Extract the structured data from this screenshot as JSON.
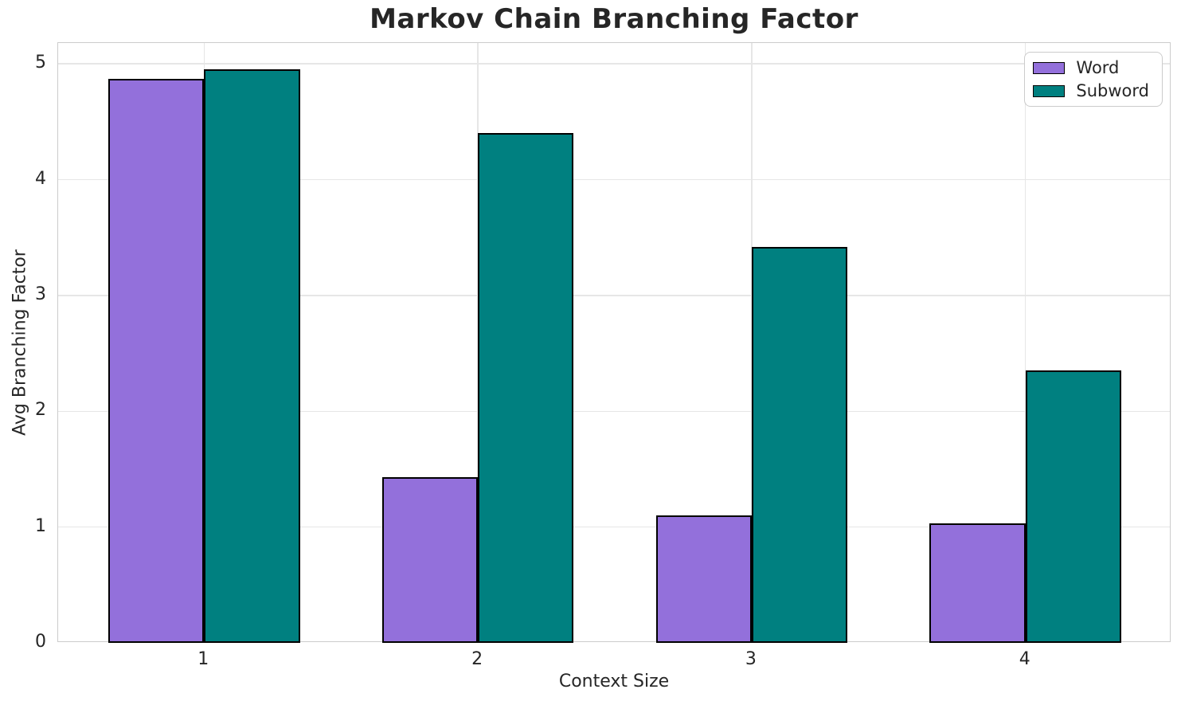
{
  "chart_data": {
    "type": "bar",
    "title": "Markov Chain Branching Factor",
    "xlabel": "Context Size",
    "ylabel": "Avg Branching Factor",
    "categories": [
      "1",
      "2",
      "3",
      "4"
    ],
    "series": [
      {
        "name": "Word",
        "color": "#9370DB",
        "values": [
          4.87,
          1.43,
          1.1,
          1.03
        ]
      },
      {
        "name": "Subword",
        "color": "#008080",
        "values": [
          4.95,
          4.4,
          3.42,
          2.35
        ]
      }
    ],
    "ylim": [
      0,
      5.18
    ],
    "yticks": [
      0,
      1,
      2,
      3,
      4,
      5
    ],
    "grid": true,
    "grid_color": "#e6e6e6",
    "spine_color": "#cccccc",
    "bar_edge_color": "#000000",
    "bar_width": 0.35,
    "legend_position": "upper right",
    "background_color": "#ffffff"
  }
}
